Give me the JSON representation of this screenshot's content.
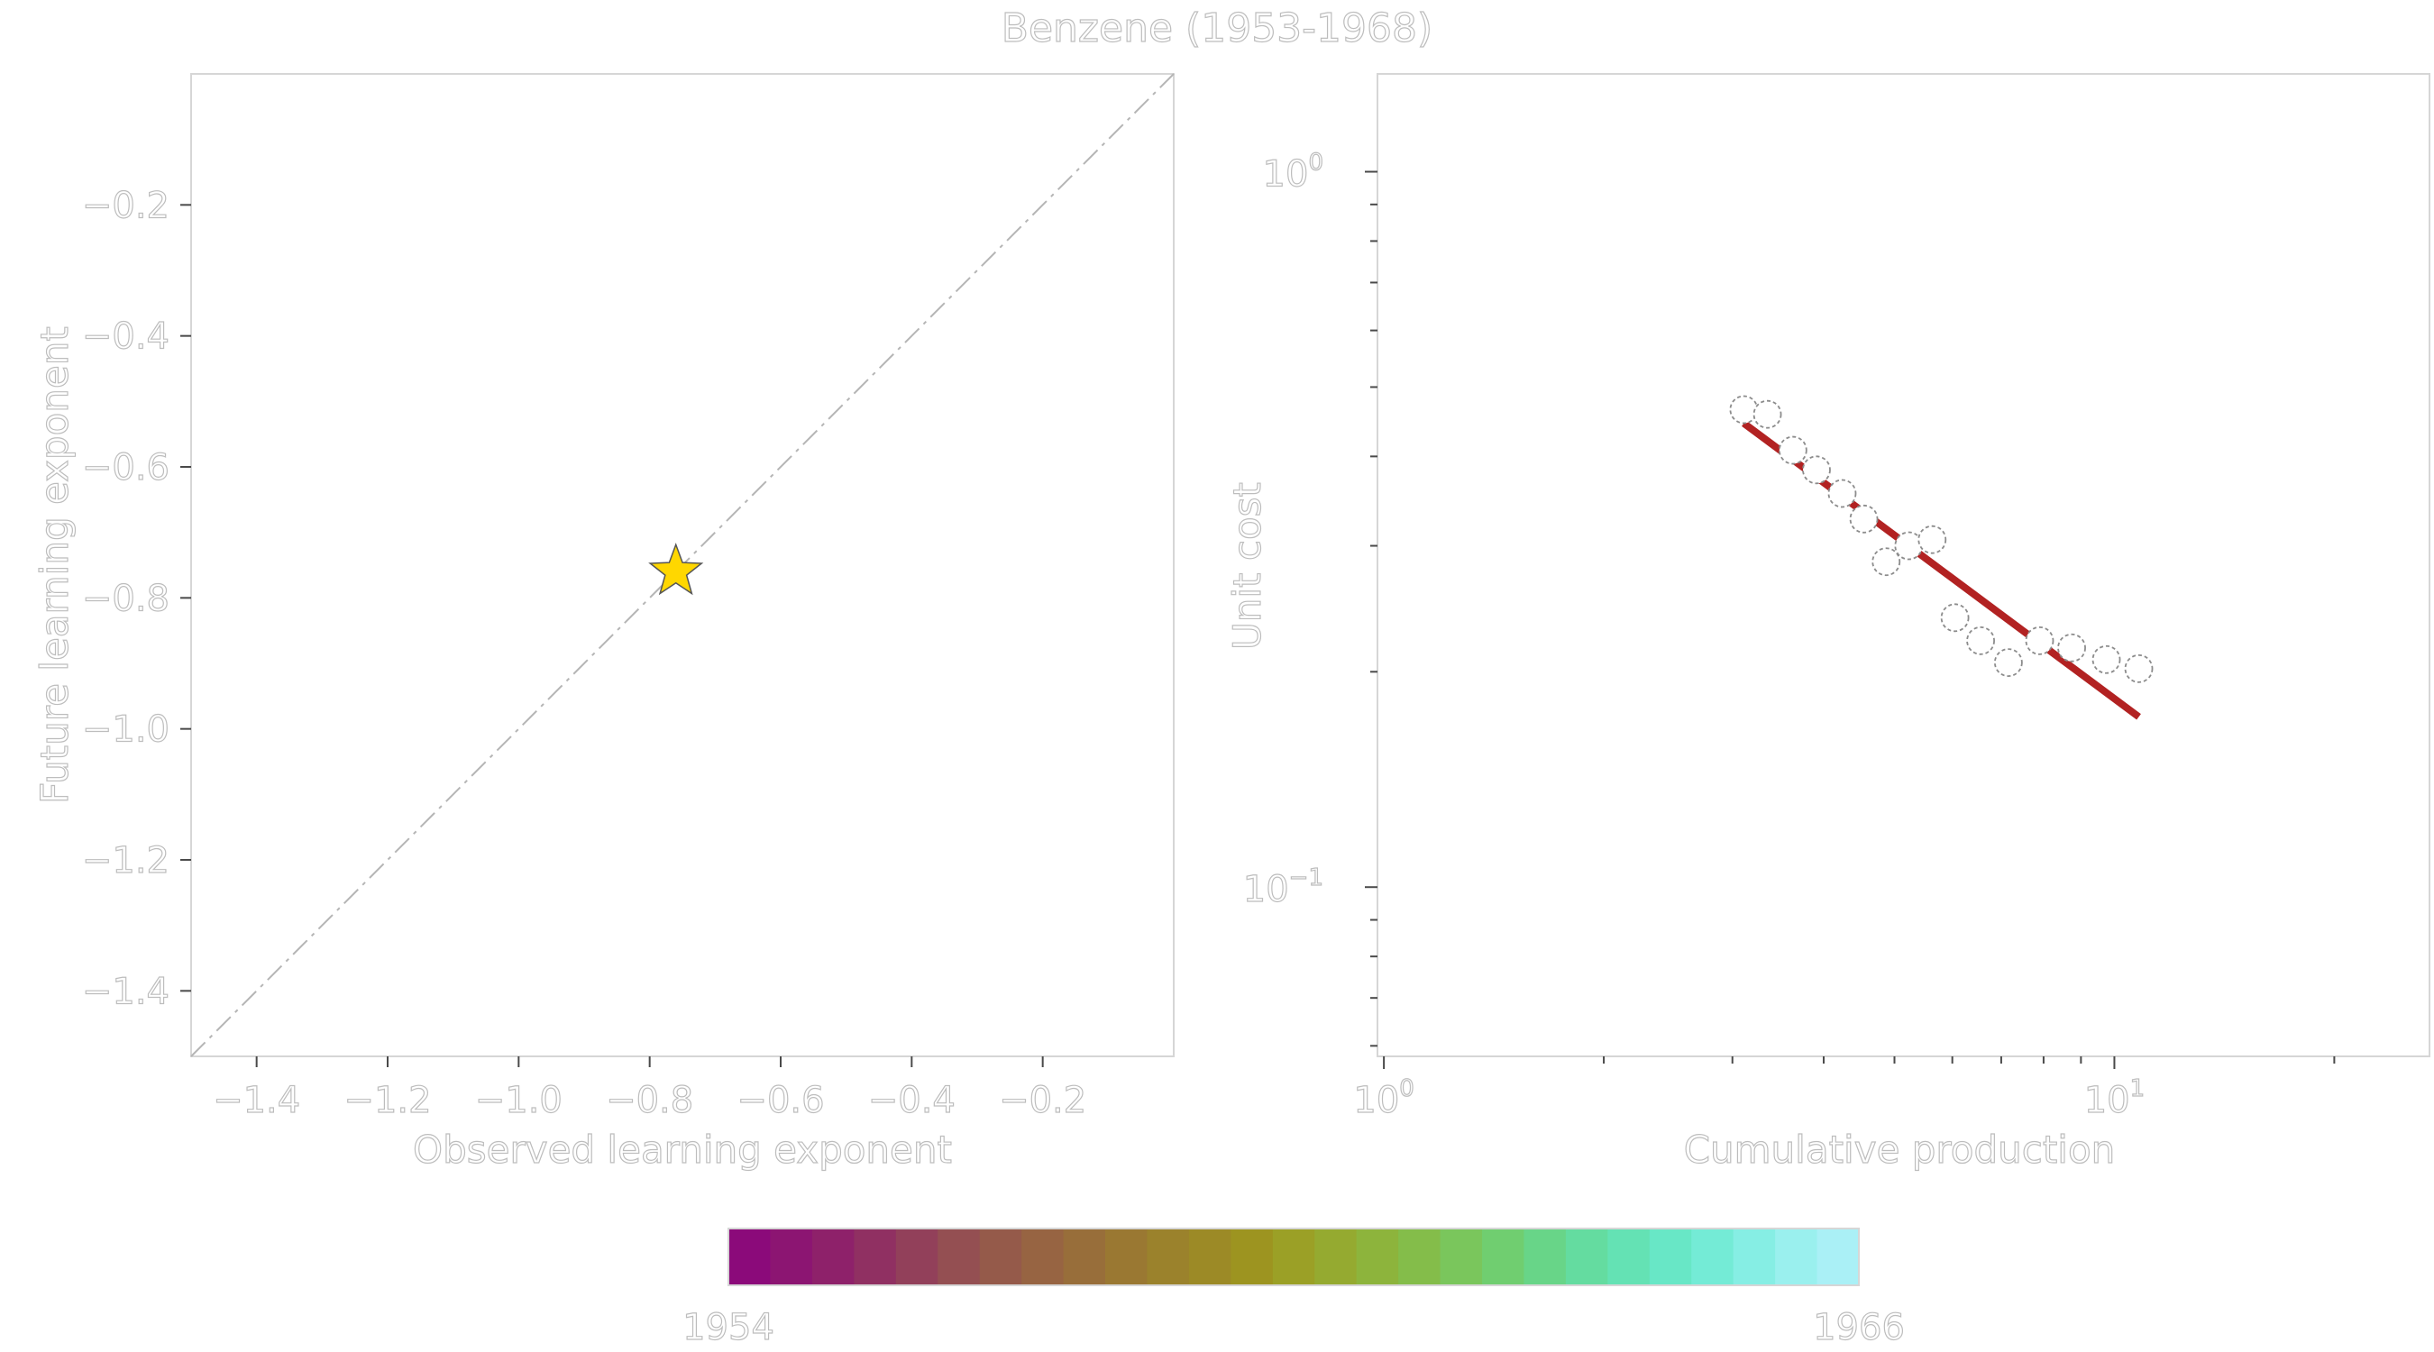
{
  "figure": {
    "title": "Benzene (1953-1968)"
  },
  "chart_data": [
    {
      "type": "scatter",
      "panel": "left",
      "title": "",
      "xlabel": "Observed learning exponent",
      "ylabel": "Future learning exponent",
      "xlim": [
        -1.5,
        0.0
      ],
      "ylim": [
        -1.5,
        0.0
      ],
      "x_ticks": [
        -1.4,
        -1.2,
        -1.0,
        -0.8,
        -0.6,
        -0.4,
        -0.2
      ],
      "x_tick_labels": [
        "−1.4",
        "−1.2",
        "−1.0",
        "−0.8",
        "−0.6",
        "−0.4",
        "−0.2"
      ],
      "y_ticks": [
        -1.4,
        -1.2,
        -1.0,
        -0.8,
        -0.6,
        -0.4,
        -0.2
      ],
      "y_tick_labels": [
        "−1.4",
        "−1.2",
        "−1.0",
        "−0.8",
        "−0.6",
        "−0.4",
        "−0.2"
      ],
      "reference_line": {
        "style": "dash-dot",
        "from": [
          -1.5,
          -1.5
        ],
        "to": [
          0.0,
          0.0
        ]
      },
      "points": [
        {
          "x": -0.76,
          "y": -0.76,
          "marker": "star",
          "color": "#FFD700"
        }
      ],
      "grid": false
    },
    {
      "type": "scatter",
      "panel": "right",
      "title": "",
      "xlabel": "Cumulative production",
      "ylabel": "Unit cost",
      "xscale": "log",
      "yscale": "log",
      "xlim": [
        0.98,
        27.0
      ],
      "ylim": [
        0.058,
        1.37
      ],
      "x_major_ticks": [
        1,
        10
      ],
      "x_major_labels": [
        "10",
        "10"
      ],
      "x_major_exponents": [
        "0",
        "1"
      ],
      "x_minor_ticks": [
        2,
        3,
        4,
        5,
        6,
        7,
        8,
        9,
        20
      ],
      "y_major_ticks": [
        0.1,
        1
      ],
      "y_major_labels": [
        "10",
        "10"
      ],
      "y_major_exponents": [
        "−1",
        "0"
      ],
      "y_minor_ticks": [
        0.06,
        0.07,
        0.08,
        0.09,
        0.2,
        0.3,
        0.4,
        0.5,
        0.6,
        0.7,
        0.8,
        0.9
      ],
      "points": [
        {
          "x": 3.11,
          "y": 0.465
        },
        {
          "x": 3.35,
          "y": 0.458
        },
        {
          "x": 3.63,
          "y": 0.408
        },
        {
          "x": 3.91,
          "y": 0.383
        },
        {
          "x": 4.24,
          "y": 0.355
        },
        {
          "x": 4.54,
          "y": 0.327
        },
        {
          "x": 4.87,
          "y": 0.285
        },
        {
          "x": 5.23,
          "y": 0.3
        },
        {
          "x": 5.63,
          "y": 0.306
        },
        {
          "x": 6.05,
          "y": 0.238
        },
        {
          "x": 6.56,
          "y": 0.221
        },
        {
          "x": 7.16,
          "y": 0.206
        },
        {
          "x": 7.9,
          "y": 0.221
        },
        {
          "x": 8.74,
          "y": 0.216
        },
        {
          "x": 9.75,
          "y": 0.208
        },
        {
          "x": 10.8,
          "y": 0.202
        }
      ],
      "fit_line": {
        "from": [
          3.11,
          0.445
        ],
        "to": [
          10.8,
          0.173
        ],
        "color": "#B22222"
      },
      "grid": false
    }
  ],
  "colorbar": {
    "min_label": "1954",
    "max_label": "1966",
    "colors": [
      "#8B0A7A",
      "#8C1572",
      "#8E216A",
      "#903062",
      "#92405A",
      "#944F52",
      "#955A4A",
      "#976442",
      "#986E3A",
      "#9A7832",
      "#9B822C",
      "#9C8A26",
      "#9D9420",
      "#9BA026",
      "#95AA30",
      "#8DB43C",
      "#84BD4A",
      "#7AC65C",
      "#70CE70",
      "#68D588",
      "#64DCA0",
      "#64E2B4",
      "#68E7C6",
      "#74EBD6",
      "#86EEE4",
      "#9AF0EE",
      "#AAF0F6"
    ]
  }
}
